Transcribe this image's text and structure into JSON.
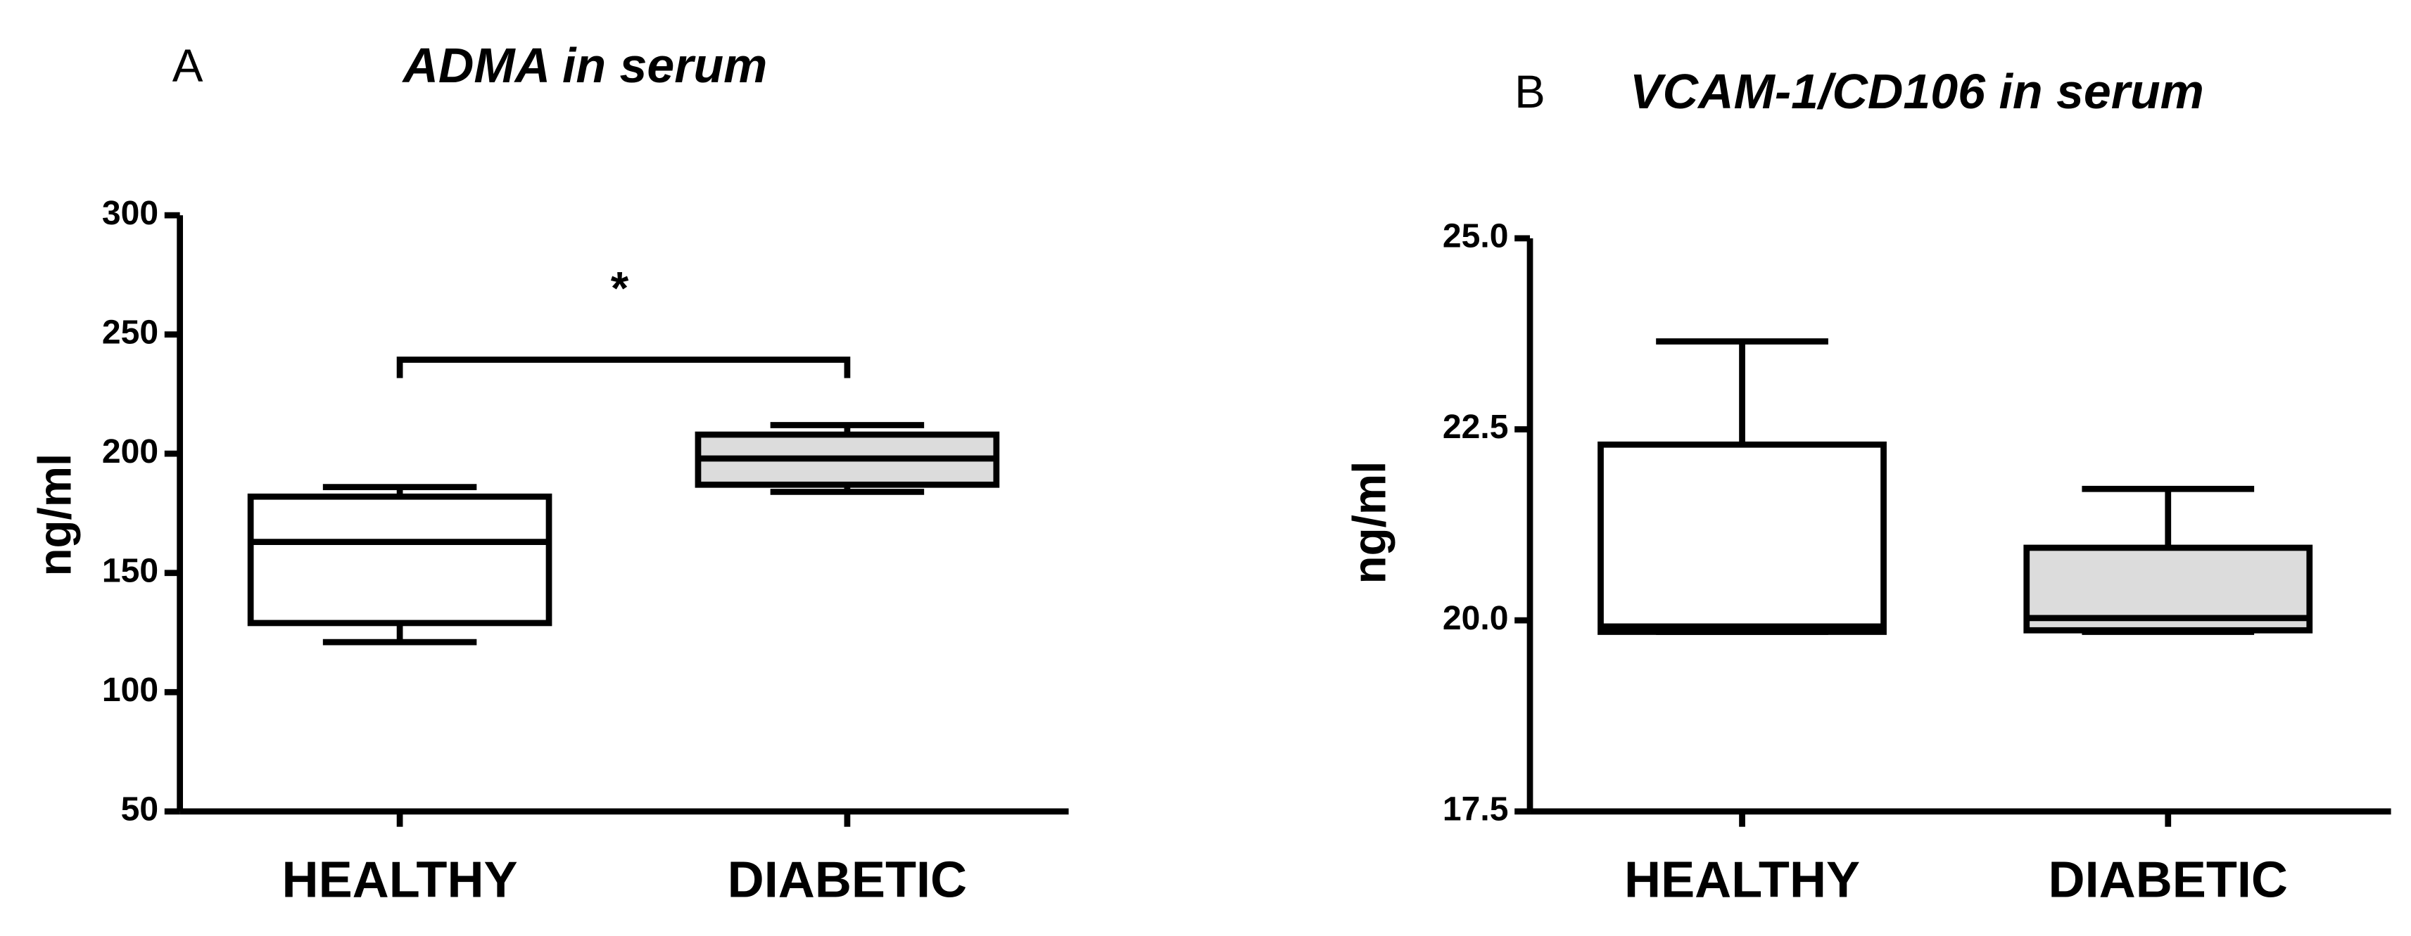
{
  "chart_data": [
    {
      "type": "box",
      "label": "A",
      "title": "ADMA in serum",
      "ylabel": "ng/ml",
      "categories": [
        "HEALTHY",
        "DIABETIC"
      ],
      "boxes": [
        {
          "min": 121,
          "q1": 129,
          "median": 163,
          "q3": 182,
          "max": 186,
          "color": "#ffffff"
        },
        {
          "min": 184,
          "q1": 187,
          "median": 198,
          "q3": 208,
          "max": 212,
          "color": "#dcdcdc"
        }
      ],
      "annotation": "*",
      "ylim": [
        50,
        300
      ],
      "yticks": [
        50,
        100,
        150,
        200,
        250,
        300
      ]
    },
    {
      "type": "box",
      "label": "B",
      "title": "VCAM-1/CD106 in serum",
      "ylabel": "ng/ml",
      "categories": [
        "HEALTHY",
        "DIABETIC"
      ],
      "boxes": [
        {
          "min": 19.85,
          "q1": 19.85,
          "median": 19.92,
          "q3": 22.3,
          "max": 23.65,
          "color": "#ffffff"
        },
        {
          "min": 19.85,
          "q1": 19.87,
          "median": 20.03,
          "q3": 20.95,
          "max": 21.72,
          "color": "#dcdcdc"
        }
      ],
      "ylim": [
        17.5,
        25
      ],
      "yticks": [
        {
          "value": 17.5,
          "label": "17.5"
        },
        {
          "value": 20,
          "label": "20.0"
        },
        {
          "value": 22.5,
          "label": "22.5"
        },
        {
          "value": 25,
          "label": "25.0"
        }
      ]
    }
  ]
}
